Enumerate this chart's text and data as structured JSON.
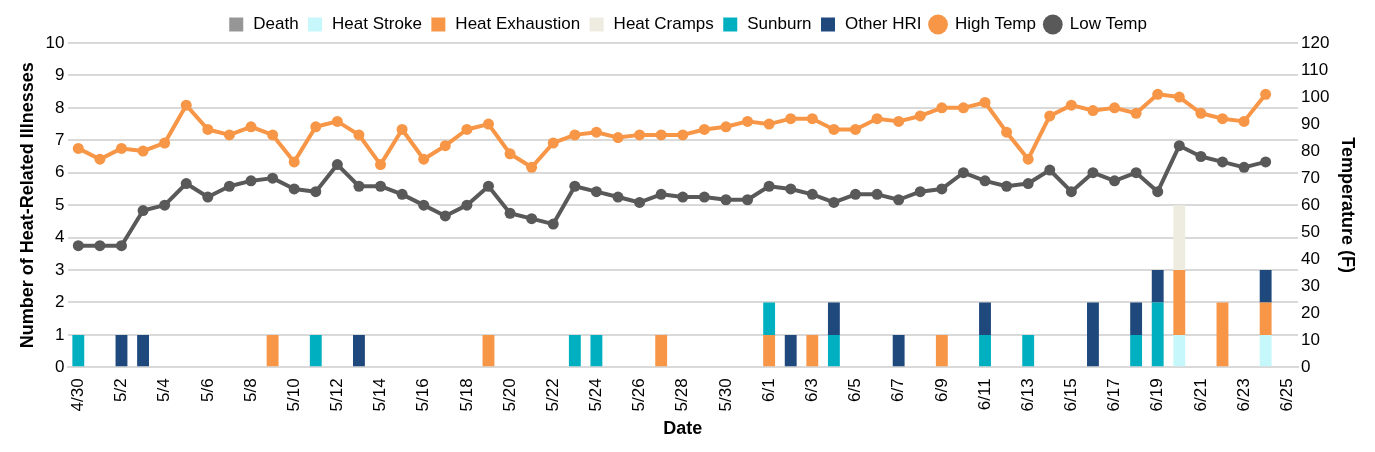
{
  "chart_data": {
    "type": "bar",
    "stacked": true,
    "xlabel": "Date",
    "ylabel": "Number of Heat-Related Illnesses",
    "y2label": "Temperature (F)",
    "categories": [
      "4/30",
      null,
      "5/2",
      null,
      "5/4",
      null,
      "5/6",
      null,
      "5/8",
      null,
      "5/10",
      null,
      "5/12",
      null,
      "5/14",
      null,
      "5/16",
      null,
      "5/18",
      null,
      "5/20",
      null,
      "5/22",
      null,
      "5/24",
      null,
      "5/26",
      null,
      "5/28",
      null,
      "5/30",
      null,
      "6/1",
      null,
      "6/3",
      null,
      "6/5",
      null,
      "6/7",
      null,
      "6/9",
      null,
      "6/11",
      null,
      "6/13",
      null,
      "6/15",
      null,
      "6/17",
      null,
      "6/19",
      null,
      "6/21",
      null,
      "6/23",
      null,
      "6/25"
    ],
    "ylim": [
      0,
      10
    ],
    "yticks": [
      0,
      1,
      2,
      3,
      4,
      5,
      6,
      7,
      8,
      9,
      10
    ],
    "y2lim": [
      0,
      120
    ],
    "y2ticks": [
      0,
      10,
      20,
      30,
      40,
      50,
      60,
      70,
      80,
      90,
      100,
      110,
      120
    ],
    "grid": "y",
    "legend": "top",
    "marker": "circle",
    "series": [
      {
        "name": "Death",
        "color": "#969696",
        "values": [
          0,
          0,
          0,
          0,
          0,
          0,
          0,
          0,
          0,
          0,
          0,
          0,
          0,
          0,
          0,
          0,
          0,
          0,
          0,
          0,
          0,
          0,
          0,
          0,
          0,
          0,
          0,
          0,
          0,
          0,
          0,
          0,
          0,
          0,
          0,
          0,
          0,
          0,
          0,
          0,
          0,
          0,
          0,
          0,
          0,
          0,
          0,
          0,
          0,
          0,
          0,
          0,
          0,
          0,
          0,
          0,
          0
        ]
      },
      {
        "name": "Heat Stroke",
        "color": "#c5f7fb",
        "values": [
          0,
          0,
          0,
          0,
          0,
          0,
          0,
          0,
          0,
          0,
          0,
          0,
          0,
          0,
          0,
          0,
          0,
          0,
          0,
          0,
          0,
          0,
          0,
          0,
          0,
          0,
          0,
          0,
          0,
          0,
          0,
          0,
          0,
          0,
          0,
          0,
          0,
          0,
          0,
          0,
          0,
          0,
          0,
          0,
          0,
          0,
          0,
          0,
          0,
          0,
          0,
          1,
          0,
          0,
          0,
          1,
          0
        ]
      },
      {
        "name": "Heat Exhaustion",
        "color": "#f79646",
        "values": [
          0,
          0,
          0,
          0,
          0,
          0,
          0,
          0,
          0,
          1,
          0,
          0,
          0,
          0,
          0,
          0,
          0,
          0,
          0,
          1,
          0,
          0,
          0,
          0,
          0,
          0,
          0,
          1,
          0,
          0,
          0,
          0,
          1,
          0,
          1,
          0,
          0,
          0,
          0,
          0,
          1,
          0,
          0,
          0,
          0,
          0,
          0,
          0,
          0,
          0,
          0,
          2,
          0,
          2,
          0,
          1,
          0
        ]
      },
      {
        "name": "Heat Cramps",
        "color": "#eeece1",
        "values": [
          0,
          0,
          0,
          0,
          0,
          0,
          0,
          0,
          0,
          0,
          0,
          0,
          0,
          0,
          0,
          0,
          0,
          0,
          0,
          0,
          0,
          0,
          0,
          0,
          0,
          0,
          0,
          0,
          0,
          0,
          0,
          0,
          0,
          0,
          0,
          0,
          0,
          0,
          0,
          0,
          0,
          0,
          0,
          0,
          0,
          0,
          0,
          0,
          0,
          0,
          0,
          2,
          0,
          0,
          0,
          0,
          0
        ]
      },
      {
        "name": "Sunburn",
        "color": "#00b0c0",
        "values": [
          1,
          0,
          0,
          0,
          0,
          0,
          0,
          0,
          0,
          0,
          0,
          1,
          0,
          0,
          0,
          0,
          0,
          0,
          0,
          0,
          0,
          0,
          0,
          1,
          1,
          0,
          0,
          0,
          0,
          0,
          0,
          0,
          1,
          0,
          0,
          1,
          0,
          0,
          0,
          0,
          0,
          0,
          1,
          0,
          1,
          0,
          0,
          0,
          0,
          1,
          2,
          0,
          0,
          0,
          0,
          0,
          0
        ]
      },
      {
        "name": "Other HRI",
        "color": "#1f497d",
        "values": [
          0,
          0,
          1,
          1,
          0,
          0,
          0,
          0,
          0,
          0,
          0,
          0,
          0,
          1,
          0,
          0,
          0,
          0,
          0,
          0,
          0,
          0,
          0,
          0,
          0,
          0,
          0,
          0,
          0,
          0,
          0,
          0,
          0,
          1,
          0,
          1,
          0,
          0,
          1,
          0,
          0,
          0,
          1,
          0,
          0,
          0,
          0,
          2,
          0,
          1,
          1,
          0,
          0,
          0,
          0,
          1,
          0
        ]
      },
      {
        "name": "High Temp",
        "type": "line",
        "axis": "y2",
        "color": "#f79646",
        "values": [
          81,
          77,
          81,
          80,
          83,
          97,
          88,
          86,
          89,
          86,
          76,
          89,
          91,
          86,
          75,
          88,
          77,
          82,
          88,
          90,
          79,
          74,
          83,
          86,
          87,
          85,
          86,
          86,
          86,
          88,
          89,
          91,
          90,
          92,
          92,
          88,
          88,
          92,
          91,
          93,
          96,
          96,
          98,
          87,
          77,
          93,
          97,
          95,
          96,
          94,
          101,
          100,
          94,
          92,
          91,
          101,
          null
        ]
      },
      {
        "name": "Low Temp",
        "type": "line",
        "axis": "y2",
        "color": "#595959",
        "values": [
          45,
          45,
          45,
          58,
          60,
          68,
          63,
          67,
          69,
          70,
          66,
          65,
          75,
          67,
          67,
          64,
          60,
          56,
          60,
          67,
          57,
          55,
          53,
          67,
          65,
          63,
          61,
          64,
          63,
          63,
          62,
          62,
          67,
          66,
          64,
          61,
          64,
          64,
          62,
          65,
          66,
          72,
          69,
          67,
          68,
          73,
          65,
          72,
          69,
          72,
          65,
          82,
          78,
          76,
          74,
          76,
          null
        ]
      }
    ]
  }
}
